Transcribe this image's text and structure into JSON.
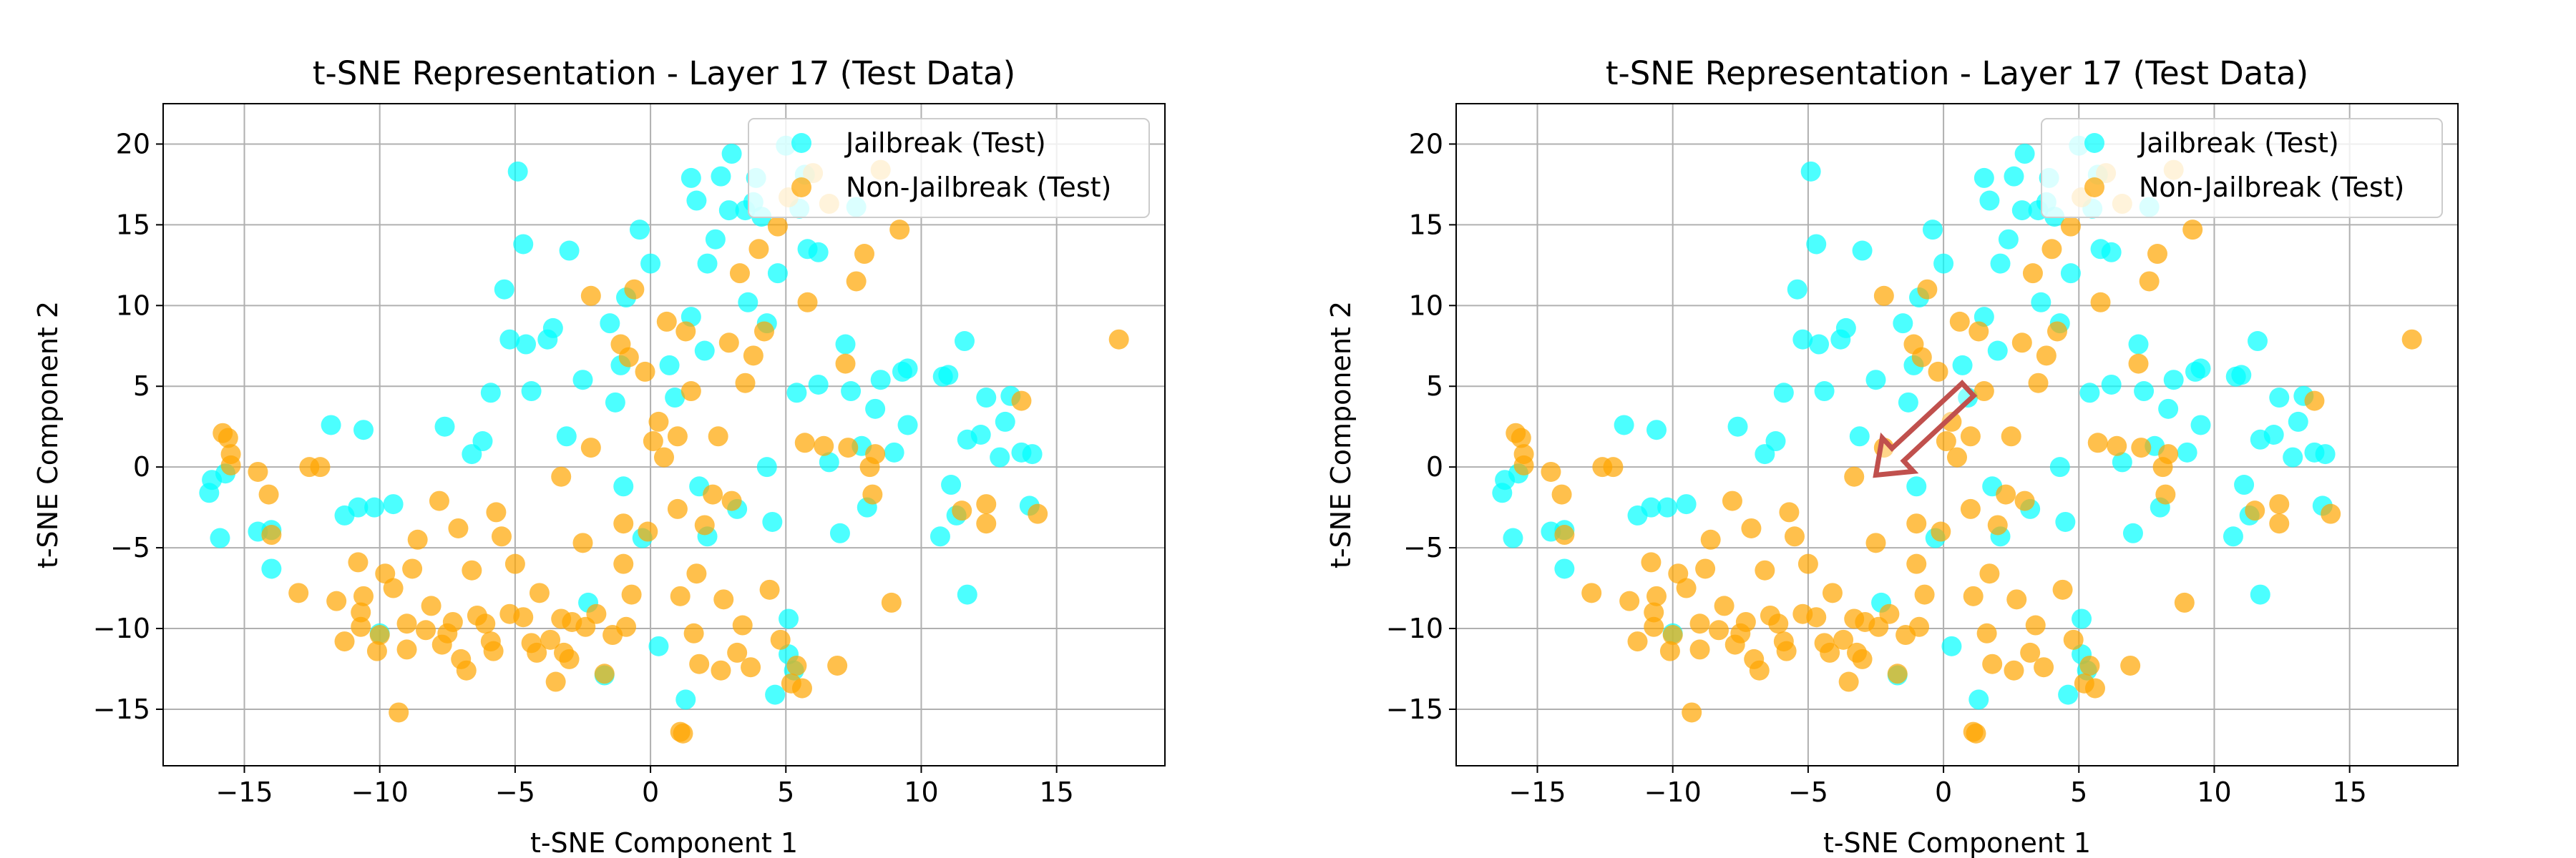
{
  "chart_data": [
    {
      "type": "scatter",
      "title": "t-SNE Representation - Layer 17 (Test Data)",
      "xlabel": "t-SNE Component 1",
      "ylabel": "t-SNE Component 2",
      "xlim": [
        -18,
        19
      ],
      "ylim": [
        -18.5,
        22.5
      ],
      "xticks": [
        -15,
        -10,
        -5,
        0,
        5,
        10,
        15
      ],
      "yticks": [
        -15,
        -10,
        -5,
        0,
        5,
        10,
        15,
        20
      ],
      "xtick_labels": [
        "−15",
        "−10",
        "−5",
        "0",
        "5",
        "10",
        "15"
      ],
      "ytick_labels": [
        "−15",
        "−10",
        "−5",
        "0",
        "5",
        "10",
        "15",
        "20"
      ],
      "grid": true,
      "legend_position": "top-right",
      "series": [
        {
          "name": "Jailbreak (Test)",
          "color": "#00FFFF"
        },
        {
          "name": "Non-Jailbreak (Test)",
          "color": "#FFA500"
        }
      ]
    },
    {
      "type": "scatter",
      "title": "t-SNE Representation - Layer 17 (Test Data)",
      "xlabel": "t-SNE Component 1",
      "ylabel": "t-SNE Component 2",
      "xlim": [
        -18,
        19
      ],
      "ylim": [
        -18.5,
        22.5
      ],
      "xticks": [
        -15,
        -10,
        -5,
        0,
        5,
        10,
        15
      ],
      "yticks": [
        -15,
        -10,
        -5,
        0,
        5,
        10,
        15,
        20
      ],
      "xtick_labels": [
        "−15",
        "−10",
        "−5",
        "0",
        "5",
        "10",
        "15"
      ],
      "ytick_labels": [
        "−15",
        "−10",
        "−5",
        "0",
        "5",
        "10",
        "15",
        "20"
      ],
      "grid": true,
      "legend_position": "top-right",
      "series": [
        {
          "name": "Jailbreak (Test)",
          "color": "#00FFFF"
        },
        {
          "name": "Non-Jailbreak (Test)",
          "color": "#FFA500"
        }
      ],
      "annotation": {
        "type": "arrow",
        "from": [
          0.9,
          4.8
        ],
        "to": [
          -2.5,
          -0.5
        ],
        "color": "#C0504D"
      }
    }
  ],
  "points": {
    "jailbreak": [
      [
        -16.3,
        -1.6
      ],
      [
        -16.2,
        -0.8
      ],
      [
        -15.9,
        -4.4
      ],
      [
        -15.7,
        -0.4
      ],
      [
        -14.5,
        -4.0
      ],
      [
        -14.0,
        -3.9
      ],
      [
        -14.0,
        -6.3
      ],
      [
        -11.8,
        2.6
      ],
      [
        -11.3,
        -3.0
      ],
      [
        -10.8,
        -2.5
      ],
      [
        -10.6,
        2.3
      ],
      [
        -10.2,
        -2.5
      ],
      [
        -10.0,
        -10.3
      ],
      [
        -9.5,
        -2.3
      ],
      [
        -7.6,
        2.5
      ],
      [
        -6.6,
        0.8
      ],
      [
        -6.2,
        1.6
      ],
      [
        -5.9,
        4.6
      ],
      [
        -5.4,
        11.0
      ],
      [
        -5.2,
        7.9
      ],
      [
        -4.9,
        18.3
      ],
      [
        -4.7,
        13.8
      ],
      [
        -4.6,
        7.6
      ],
      [
        -4.4,
        4.7
      ],
      [
        -3.8,
        7.9
      ],
      [
        -3.6,
        8.6
      ],
      [
        -3.1,
        1.9
      ],
      [
        -3.0,
        13.4
      ],
      [
        -2.5,
        5.4
      ],
      [
        -2.3,
        -8.4
      ],
      [
        -1.7,
        -12.9
      ],
      [
        -1.5,
        8.9
      ],
      [
        -1.3,
        4.0
      ],
      [
        -1.1,
        6.3
      ],
      [
        -1.0,
        -1.2
      ],
      [
        -0.9,
        10.5
      ],
      [
        -0.4,
        14.7
      ],
      [
        -0.3,
        -4.4
      ],
      [
        0.0,
        12.6
      ],
      [
        0.3,
        -11.1
      ],
      [
        0.7,
        6.3
      ],
      [
        0.9,
        4.3
      ],
      [
        1.3,
        -14.4
      ],
      [
        1.5,
        17.9
      ],
      [
        1.5,
        9.3
      ],
      [
        1.7,
        16.5
      ],
      [
        1.8,
        -1.2
      ],
      [
        2.0,
        7.2
      ],
      [
        2.1,
        -4.3
      ],
      [
        2.1,
        12.6
      ],
      [
        2.4,
        14.1
      ],
      [
        2.6,
        18.0
      ],
      [
        2.9,
        15.9
      ],
      [
        3.0,
        19.4
      ],
      [
        3.2,
        -2.6
      ],
      [
        3.5,
        15.9
      ],
      [
        3.6,
        10.2
      ],
      [
        3.8,
        16.4
      ],
      [
        3.9,
        17.9
      ],
      [
        4.1,
        15.5
      ],
      [
        4.3,
        0.0
      ],
      [
        4.3,
        8.9
      ],
      [
        4.5,
        -3.4
      ],
      [
        4.6,
        -14.1
      ],
      [
        4.7,
        12.0
      ],
      [
        5.0,
        19.9
      ],
      [
        5.1,
        -9.4
      ],
      [
        5.1,
        -11.6
      ],
      [
        5.3,
        -12.6
      ],
      [
        5.4,
        4.6
      ],
      [
        5.5,
        16.0
      ],
      [
        5.7,
        18.1
      ],
      [
        5.8,
        13.5
      ],
      [
        6.2,
        5.1
      ],
      [
        6.2,
        13.3
      ],
      [
        6.6,
        0.3
      ],
      [
        7.0,
        -4.1
      ],
      [
        7.2,
        7.6
      ],
      [
        7.4,
        4.7
      ],
      [
        7.6,
        16.1
      ],
      [
        7.8,
        1.3
      ],
      [
        8.0,
        -2.5
      ],
      [
        8.3,
        3.6
      ],
      [
        8.5,
        5.4
      ],
      [
        9.0,
        0.9
      ],
      [
        9.3,
        5.9
      ],
      [
        9.5,
        2.6
      ],
      [
        9.5,
        6.1
      ],
      [
        10.7,
        -4.3
      ],
      [
        10.8,
        5.6
      ],
      [
        11.0,
        5.7
      ],
      [
        11.1,
        -1.1
      ],
      [
        11.3,
        -3.0
      ],
      [
        11.6,
        7.8
      ],
      [
        11.7,
        1.7
      ],
      [
        11.7,
        -7.9
      ],
      [
        12.2,
        2.0
      ],
      [
        12.4,
        4.3
      ],
      [
        12.9,
        0.6
      ],
      [
        13.1,
        2.8
      ],
      [
        13.3,
        4.4
      ],
      [
        13.7,
        0.9
      ],
      [
        14.0,
        -2.4
      ],
      [
        14.1,
        0.8
      ]
    ],
    "nonjailbreak": [
      [
        -15.8,
        2.1
      ],
      [
        -15.6,
        1.8
      ],
      [
        -15.5,
        0.8
      ],
      [
        -15.5,
        0.1
      ],
      [
        -14.5,
        -0.3
      ],
      [
        -14.1,
        -1.7
      ],
      [
        -14.0,
        -4.2
      ],
      [
        -13.0,
        -7.8
      ],
      [
        -12.6,
        0.0
      ],
      [
        -12.2,
        0.0
      ],
      [
        -11.6,
        -8.3
      ],
      [
        -11.3,
        -10.8
      ],
      [
        -10.8,
        -5.9
      ],
      [
        -10.7,
        -9.0
      ],
      [
        -10.7,
        -9.9
      ],
      [
        -10.6,
        -8.0
      ],
      [
        -10.1,
        -11.4
      ],
      [
        -10.0,
        -10.4
      ],
      [
        -9.8,
        -6.6
      ],
      [
        -9.5,
        -7.5
      ],
      [
        -9.3,
        -15.2
      ],
      [
        -9.0,
        -9.7
      ],
      [
        -9.0,
        -11.3
      ],
      [
        -8.8,
        -6.3
      ],
      [
        -8.6,
        -4.5
      ],
      [
        -8.3,
        -10.1
      ],
      [
        -8.1,
        -8.6
      ],
      [
        -7.8,
        -2.1
      ],
      [
        -7.7,
        -11.0
      ],
      [
        -7.5,
        -10.3
      ],
      [
        -7.3,
        -9.6
      ],
      [
        -7.1,
        -3.8
      ],
      [
        -7.0,
        -11.9
      ],
      [
        -6.8,
        -12.6
      ],
      [
        -6.6,
        -6.4
      ],
      [
        -6.4,
        -9.2
      ],
      [
        -6.1,
        -9.7
      ],
      [
        -5.9,
        -10.8
      ],
      [
        -5.8,
        -11.4
      ],
      [
        -5.7,
        -2.8
      ],
      [
        -5.5,
        -4.3
      ],
      [
        -5.2,
        -9.1
      ],
      [
        -5.0,
        -6.0
      ],
      [
        -4.7,
        -9.3
      ],
      [
        -4.4,
        -10.9
      ],
      [
        -4.2,
        -11.5
      ],
      [
        -4.1,
        -7.8
      ],
      [
        -3.7,
        -10.7
      ],
      [
        -3.5,
        -13.3
      ],
      [
        -3.3,
        -0.6
      ],
      [
        -3.3,
        -9.4
      ],
      [
        -3.2,
        -11.5
      ],
      [
        -3.0,
        -11.9
      ],
      [
        -2.9,
        -9.6
      ],
      [
        -2.5,
        -4.7
      ],
      [
        -2.4,
        -9.9
      ],
      [
        -2.2,
        1.2
      ],
      [
        -2.2,
        10.6
      ],
      [
        -2.0,
        -9.1
      ],
      [
        -1.7,
        -12.8
      ],
      [
        -1.4,
        -10.4
      ],
      [
        -1.1,
        7.6
      ],
      [
        -1.0,
        -3.5
      ],
      [
        -1.0,
        -6.0
      ],
      [
        -0.9,
        -9.9
      ],
      [
        -0.8,
        6.8
      ],
      [
        -0.7,
        -7.9
      ],
      [
        -0.6,
        11.0
      ],
      [
        -0.2,
        5.9
      ],
      [
        -0.1,
        -4.0
      ],
      [
        0.1,
        1.6
      ],
      [
        0.3,
        2.8
      ],
      [
        0.5,
        0.6
      ],
      [
        0.6,
        9.0
      ],
      [
        1.0,
        1.9
      ],
      [
        1.0,
        -2.6
      ],
      [
        1.1,
        -8.0
      ],
      [
        1.1,
        -16.4
      ],
      [
        1.2,
        -16.5
      ],
      [
        1.3,
        8.4
      ],
      [
        1.5,
        4.7
      ],
      [
        1.6,
        -10.3
      ],
      [
        1.7,
        -6.6
      ],
      [
        1.8,
        -12.2
      ],
      [
        2.0,
        -3.6
      ],
      [
        2.3,
        -1.7
      ],
      [
        2.5,
        1.9
      ],
      [
        2.6,
        -12.6
      ],
      [
        2.7,
        -8.2
      ],
      [
        2.9,
        7.7
      ],
      [
        3.0,
        -2.1
      ],
      [
        3.2,
        -11.5
      ],
      [
        3.3,
        12.0
      ],
      [
        3.4,
        -9.8
      ],
      [
        3.5,
        5.2
      ],
      [
        3.7,
        -12.4
      ],
      [
        3.8,
        6.9
      ],
      [
        4.0,
        13.5
      ],
      [
        4.2,
        8.4
      ],
      [
        4.4,
        -7.6
      ],
      [
        4.7,
        14.9
      ],
      [
        4.8,
        -10.7
      ],
      [
        5.1,
        16.7
      ],
      [
        5.2,
        -13.4
      ],
      [
        5.4,
        -12.3
      ],
      [
        5.6,
        -13.7
      ],
      [
        5.7,
        1.5
      ],
      [
        5.8,
        10.2
      ],
      [
        6.0,
        18.2
      ],
      [
        6.4,
        1.3
      ],
      [
        6.6,
        16.3
      ],
      [
        6.9,
        -12.3
      ],
      [
        7.2,
        6.4
      ],
      [
        7.3,
        1.2
      ],
      [
        7.6,
        11.5
      ],
      [
        7.9,
        13.2
      ],
      [
        8.1,
        0.0
      ],
      [
        8.2,
        -1.7
      ],
      [
        8.3,
        0.8
      ],
      [
        8.5,
        18.4
      ],
      [
        8.9,
        -8.4
      ],
      [
        9.2,
        14.7
      ],
      [
        11.5,
        -2.7
      ],
      [
        12.4,
        -3.5
      ],
      [
        12.4,
        -2.3
      ],
      [
        13.7,
        4.1
      ],
      [
        14.3,
        -2.9
      ],
      [
        17.3,
        7.9
      ]
    ]
  }
}
